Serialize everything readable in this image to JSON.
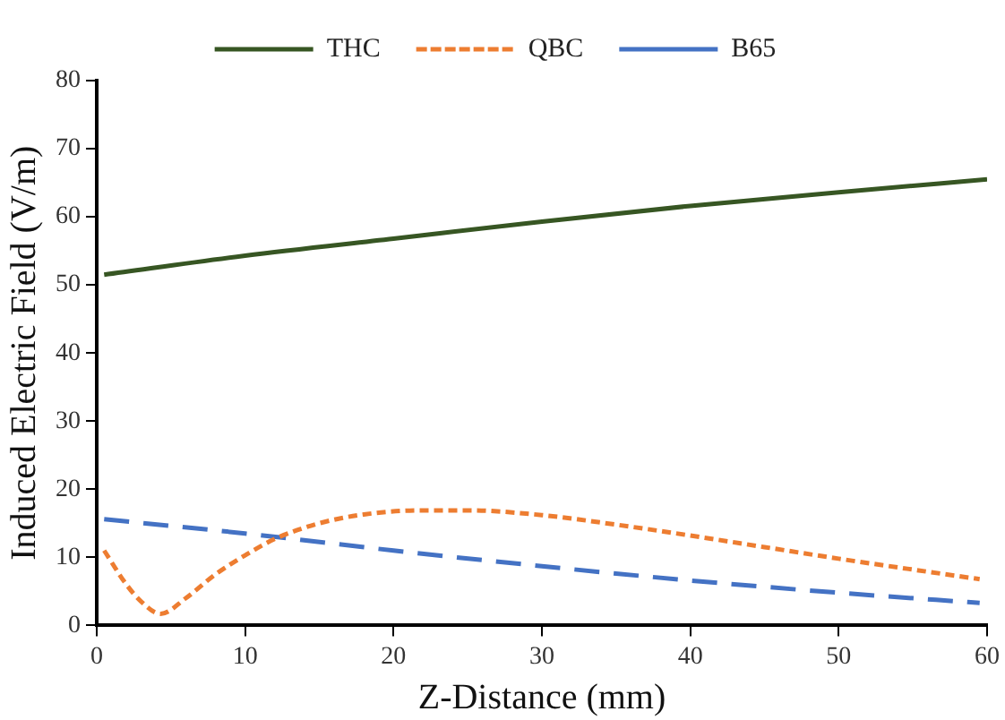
{
  "chart_data": {
    "type": "line",
    "xlabel": "Z-Distance (mm)",
    "ylabel": "Induced Electric Field (V/m)",
    "xlim": [
      0,
      60
    ],
    "xticks": [
      0,
      10,
      20,
      30,
      40,
      50,
      60
    ],
    "ylim": [
      0,
      80
    ],
    "yticks": [
      0,
      10,
      20,
      30,
      40,
      50,
      60,
      70,
      80
    ],
    "grid": false,
    "legend": "top",
    "marker": "none",
    "series": [
      {
        "name": "THC",
        "color": "#375623",
        "line_style": "solid",
        "x": [
          0.5,
          10,
          20,
          30,
          40,
          50,
          60
        ],
        "values": [
          51.5,
          54.3,
          56.8,
          59.3,
          61.6,
          63.6,
          65.5
        ]
      },
      {
        "name": "QBC",
        "color": "#ed7d31",
        "line_style": "dotted",
        "x": [
          0.5,
          2,
          3,
          4.3,
          6,
          8,
          10,
          12,
          15,
          18,
          22,
          25,
          30,
          35,
          40,
          45,
          50,
          55,
          59.5
        ],
        "values": [
          11,
          6,
          3.5,
          1.7,
          4,
          7.5,
          10.3,
          12.7,
          15,
          16.3,
          16.9,
          16.9,
          16.2,
          14.8,
          13.2,
          11.5,
          9.8,
          8.2,
          6.8
        ]
      },
      {
        "name": "B65",
        "color": "#4472c4",
        "line_style": "dashed",
        "x": [
          0.5,
          10,
          20,
          30,
          40,
          50,
          59.5
        ],
        "values": [
          15.6,
          13.5,
          11,
          8.7,
          6.6,
          4.8,
          3.3
        ]
      }
    ]
  }
}
